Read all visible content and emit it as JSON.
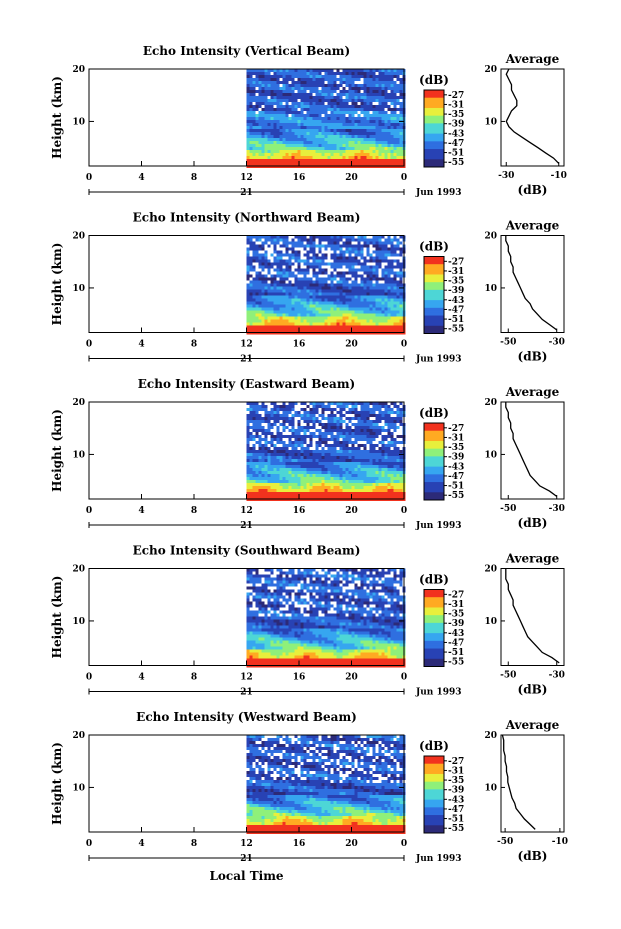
{
  "figure": {
    "month_label": "Jun 1993",
    "x_axis_label": "Local Time",
    "date_label": "21"
  },
  "chart_data": [
    {
      "type": "heatmap",
      "title": "Echo Intensity (Vertical Beam)",
      "beam": "vertical",
      "ylabel": "Height (km)",
      "xlabel": "Local Time",
      "x_ticks": [
        "0",
        "4",
        "8",
        "12",
        "16",
        "20",
        "0"
      ],
      "y_ticks": [
        "10",
        "20"
      ],
      "xlim": [
        0,
        24
      ],
      "ylim": [
        1.5,
        20
      ],
      "data_start_hour": 12,
      "colorbar": {
        "label": "(dB)",
        "ticks": [
          "-27",
          "-31",
          "-35",
          "-39",
          "-43",
          "-47",
          "-51",
          "-55"
        ],
        "range": [
          -57,
          -25
        ]
      },
      "profile": {
        "title": "Average",
        "xlabel": "(dB)",
        "x_ticks": [
          "-30",
          "-10"
        ],
        "xlim": [
          -32,
          -8
        ],
        "y_ticks": [
          "10",
          "20"
        ],
        "heights_km": [
          2,
          3,
          4,
          5,
          6,
          7,
          8,
          9,
          10,
          11,
          12,
          13,
          14,
          15,
          16,
          17,
          18,
          19,
          20
        ],
        "values_db": [
          -10,
          -12,
          -15,
          -18,
          -21,
          -24,
          -27,
          -29,
          -30,
          -29,
          -28,
          -26,
          -26,
          -27,
          -28,
          -28,
          -29,
          -30,
          -29
        ]
      }
    },
    {
      "type": "heatmap",
      "title": "Echo Intensity (Northward Beam)",
      "beam": "northward",
      "ylabel": "Height (km)",
      "xlabel": "Local Time",
      "x_ticks": [
        "0",
        "4",
        "8",
        "12",
        "16",
        "20",
        "0"
      ],
      "y_ticks": [
        "10",
        "20"
      ],
      "xlim": [
        0,
        24
      ],
      "ylim": [
        1.5,
        20
      ],
      "data_start_hour": 12,
      "colorbar": {
        "label": "(dB)",
        "ticks": [
          "-27",
          "-31",
          "-35",
          "-39",
          "-43",
          "-47",
          "-51",
          "-55"
        ],
        "range": [
          -57,
          -25
        ]
      },
      "profile": {
        "title": "Average",
        "xlabel": "(dB)",
        "x_ticks": [
          "-50",
          "-30"
        ],
        "xlim": [
          -53,
          -27
        ],
        "y_ticks": [
          "10",
          "20"
        ],
        "heights_km": [
          2,
          3,
          4,
          5,
          6,
          7,
          8,
          9,
          10,
          11,
          12,
          13,
          14,
          15,
          16,
          17,
          18,
          19,
          20
        ],
        "values_db": [
          -30,
          -33,
          -36,
          -38,
          -40,
          -41,
          -43,
          -44,
          -45,
          -46,
          -47,
          -48,
          -48,
          -49,
          -49,
          -50,
          -50,
          -51,
          -51
        ]
      }
    },
    {
      "type": "heatmap",
      "title": "Echo Intensity (Eastward Beam)",
      "beam": "eastward",
      "ylabel": "Height (km)",
      "xlabel": "Local Time",
      "x_ticks": [
        "0",
        "4",
        "8",
        "12",
        "16",
        "20",
        "0"
      ],
      "y_ticks": [
        "10",
        "20"
      ],
      "xlim": [
        0,
        24
      ],
      "ylim": [
        1.5,
        20
      ],
      "data_start_hour": 12,
      "colorbar": {
        "label": "(dB)",
        "ticks": [
          "-27",
          "-31",
          "-35",
          "-39",
          "-43",
          "-47",
          "-51",
          "-55"
        ],
        "range": [
          -57,
          -25
        ]
      },
      "profile": {
        "title": "Average",
        "xlabel": "(dB)",
        "x_ticks": [
          "-50",
          "-30"
        ],
        "xlim": [
          -53,
          -27
        ],
        "y_ticks": [
          "10",
          "20"
        ],
        "heights_km": [
          2,
          3,
          4,
          5,
          6,
          7,
          8,
          9,
          10,
          11,
          12,
          13,
          14,
          15,
          16,
          17,
          18,
          19,
          20
        ],
        "values_db": [
          -30,
          -33,
          -37,
          -39,
          -41,
          -42,
          -43,
          -44,
          -45,
          -46,
          -47,
          -48,
          -48,
          -49,
          -49,
          -50,
          -50,
          -51,
          -51
        ]
      }
    },
    {
      "type": "heatmap",
      "title": "Echo Intensity (Southward Beam)",
      "beam": "southward",
      "ylabel": "Height (km)",
      "xlabel": "Local Time",
      "x_ticks": [
        "0",
        "4",
        "8",
        "12",
        "16",
        "20",
        "0"
      ],
      "y_ticks": [
        "10",
        "20"
      ],
      "xlim": [
        0,
        24
      ],
      "ylim": [
        1.5,
        20
      ],
      "data_start_hour": 12,
      "colorbar": {
        "label": "(dB)",
        "ticks": [
          "-27",
          "-31",
          "-35",
          "-39",
          "-43",
          "-47",
          "-51",
          "-55"
        ],
        "range": [
          -57,
          -25
        ]
      },
      "profile": {
        "title": "Average",
        "xlabel": "(dB)",
        "x_ticks": [
          "-50",
          "-30"
        ],
        "xlim": [
          -53,
          -27
        ],
        "y_ticks": [
          "10",
          "20"
        ],
        "heights_km": [
          2,
          3,
          4,
          5,
          6,
          7,
          8,
          9,
          10,
          11,
          12,
          13,
          14,
          15,
          16,
          17,
          18,
          19,
          20
        ],
        "values_db": [
          -29,
          -32,
          -36,
          -38,
          -40,
          -42,
          -43,
          -44,
          -45,
          -46,
          -47,
          -48,
          -48,
          -49,
          -50,
          -50,
          -51,
          -51,
          -51
        ]
      }
    },
    {
      "type": "heatmap",
      "title": "Echo Intensity (Westward Beam)",
      "beam": "westward",
      "ylabel": "Height (km)",
      "xlabel": "Local Time",
      "x_ticks": [
        "0",
        "4",
        "8",
        "12",
        "16",
        "20",
        "0"
      ],
      "y_ticks": [
        "10",
        "20"
      ],
      "xlim": [
        0,
        24
      ],
      "ylim": [
        1.5,
        20
      ],
      "data_start_hour": 12,
      "colorbar": {
        "label": "(dB)",
        "ticks": [
          "-27",
          "-31",
          "-35",
          "-39",
          "-43",
          "-47",
          "-51",
          "-55"
        ],
        "range": [
          -57,
          -25
        ]
      },
      "profile": {
        "title": "Average",
        "xlabel": "(dB)",
        "x_ticks": [
          "-50",
          "-10"
        ],
        "xlim": [
          -53,
          -7
        ],
        "y_ticks": [
          "10",
          "20"
        ],
        "heights_km": [
          2,
          3,
          4,
          5,
          6,
          7,
          8,
          9,
          10,
          11,
          12,
          13,
          14,
          15,
          16,
          17,
          18,
          19,
          20
        ],
        "values_db": [
          -28,
          -32,
          -36,
          -39,
          -42,
          -43,
          -45,
          -46,
          -47,
          -48,
          -48,
          -49,
          -49,
          -50,
          -50,
          -51,
          -51,
          -51,
          -52
        ]
      }
    }
  ],
  "colors": {
    "scale": [
      "#2c2a78",
      "#2842b4",
      "#2f6fe0",
      "#36a6f0",
      "#4dd6d6",
      "#8ff07a",
      "#e8ef3c",
      "#ffaa22",
      "#f2321e"
    ],
    "missing": "#ffffff"
  }
}
